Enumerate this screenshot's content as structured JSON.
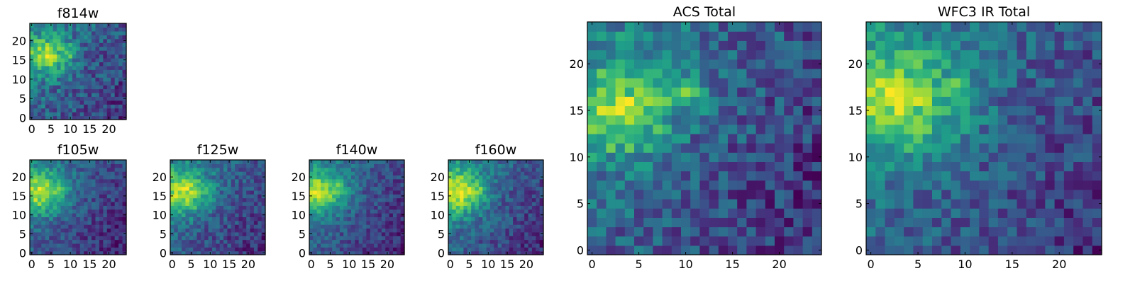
{
  "chart_data": [
    {
      "type": "heatmap",
      "title": "f814w",
      "x_ticks": [
        0,
        5,
        10,
        15,
        20
      ],
      "y_ticks": [
        0,
        5,
        10,
        15,
        20
      ],
      "xlim": [
        -0.5,
        24.5
      ],
      "ylim": [
        -0.5,
        24.5
      ],
      "colormap": "viridis",
      "grid": false,
      "blob": {
        "cx": 4,
        "cy": 16,
        "sx": 4,
        "sy": 3.5,
        "bx": 9,
        "by": 17,
        "noise": 0.45,
        "seed": 11
      }
    },
    {
      "type": "heatmap",
      "title": "f105w",
      "x_ticks": [
        0,
        5,
        10,
        15,
        20
      ],
      "y_ticks": [
        0,
        5,
        10,
        15,
        20
      ],
      "xlim": [
        -0.5,
        24.5
      ],
      "ylim": [
        -0.5,
        24.5
      ],
      "colormap": "viridis",
      "grid": false,
      "blob": {
        "cx": 2,
        "cy": 16,
        "sx": 5,
        "sy": 4,
        "bx": 7,
        "by": 17,
        "noise": 0.3,
        "seed": 22
      }
    },
    {
      "type": "heatmap",
      "title": "f125w",
      "x_ticks": [
        0,
        5,
        10,
        15,
        20
      ],
      "y_ticks": [
        0,
        5,
        10,
        15,
        20
      ],
      "xlim": [
        -0.5,
        24.5
      ],
      "ylim": [
        -0.5,
        24.5
      ],
      "colormap": "viridis",
      "grid": false,
      "blob": {
        "cx": 3,
        "cy": 16,
        "sx": 5,
        "sy": 4,
        "bx": 8,
        "by": 17,
        "noise": 0.35,
        "seed": 33
      }
    },
    {
      "type": "heatmap",
      "title": "f140w",
      "x_ticks": [
        0,
        5,
        10,
        15,
        20
      ],
      "y_ticks": [
        0,
        5,
        10,
        15,
        20
      ],
      "xlim": [
        -0.5,
        24.5
      ],
      "ylim": [
        -0.5,
        24.5
      ],
      "colormap": "viridis",
      "grid": false,
      "blob": {
        "cx": 2,
        "cy": 16,
        "sx": 5,
        "sy": 4,
        "bx": 7,
        "by": 17,
        "noise": 0.3,
        "seed": 44
      }
    },
    {
      "type": "heatmap",
      "title": "f160w",
      "x_ticks": [
        0,
        5,
        10,
        15,
        20
      ],
      "y_ticks": [
        0,
        5,
        10,
        15,
        20
      ],
      "xlim": [
        -0.5,
        24.5
      ],
      "ylim": [
        -0.5,
        24.5
      ],
      "colormap": "viridis",
      "grid": false,
      "blob": {
        "cx": 2,
        "cy": 16,
        "sx": 5,
        "sy": 4,
        "bx": 7,
        "by": 17,
        "noise": 0.3,
        "seed": 55
      }
    },
    {
      "type": "heatmap",
      "title": "ACS Total",
      "x_ticks": [
        0,
        5,
        10,
        15,
        20
      ],
      "y_ticks": [
        0,
        5,
        10,
        15,
        20
      ],
      "xlim": [
        -0.5,
        24.5
      ],
      "ylim": [
        -0.5,
        24.5
      ],
      "colormap": "viridis",
      "grid": false,
      "blob": {
        "cx": 3,
        "cy": 15,
        "sx": 4,
        "sy": 3.5,
        "bx": 9,
        "by": 17,
        "noise": 0.45,
        "seed": 66
      }
    },
    {
      "type": "heatmap",
      "title": "WFC3 IR Total",
      "x_ticks": [
        0,
        5,
        10,
        15,
        20
      ],
      "y_ticks": [
        0,
        5,
        10,
        15,
        20
      ],
      "xlim": [
        -0.5,
        24.5
      ],
      "ylim": [
        -0.5,
        24.5
      ],
      "colormap": "viridis",
      "grid": false,
      "blob": {
        "cx": 3,
        "cy": 16,
        "sx": 5,
        "sy": 4,
        "bx": 8,
        "by": 17,
        "noise": 0.4,
        "seed": 77
      }
    }
  ]
}
